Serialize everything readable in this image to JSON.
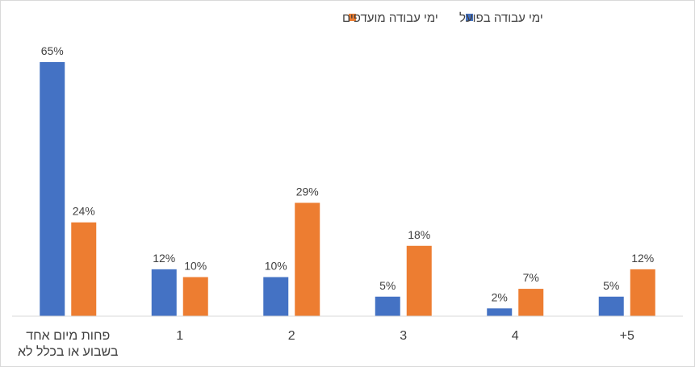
{
  "chart_data": {
    "type": "bar",
    "categories": [
      "פחות מיום אחד\nבשבוע או בכלל לא",
      "1",
      "2",
      "3",
      "4",
      "5+"
    ],
    "series": [
      {
        "name": "ימי עבודה בפועל",
        "values": [
          65,
          12,
          10,
          5,
          2,
          5
        ],
        "color": "#4472c4"
      },
      {
        "name": "ימי עבודה מועדפים",
        "values": [
          24,
          10,
          29,
          18,
          7,
          12
        ],
        "color": "#ed7d31"
      }
    ],
    "value_suffix": "%",
    "ylim": [
      0,
      65
    ],
    "grid": false,
    "legend_position": "top"
  }
}
